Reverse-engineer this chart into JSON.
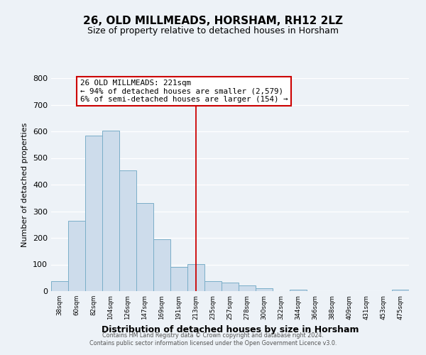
{
  "title": "26, OLD MILLMEADS, HORSHAM, RH12 2LZ",
  "subtitle": "Size of property relative to detached houses in Horsham",
  "xlabel": "Distribution of detached houses by size in Horsham",
  "ylabel": "Number of detached properties",
  "bar_labels": [
    "38sqm",
    "60sqm",
    "82sqm",
    "104sqm",
    "126sqm",
    "147sqm",
    "169sqm",
    "191sqm",
    "213sqm",
    "235sqm",
    "257sqm",
    "278sqm",
    "300sqm",
    "322sqm",
    "344sqm",
    "366sqm",
    "388sqm",
    "409sqm",
    "431sqm",
    "453sqm",
    "475sqm"
  ],
  "bar_heights": [
    38,
    265,
    585,
    603,
    453,
    332,
    196,
    90,
    101,
    38,
    33,
    21,
    12,
    0,
    5,
    0,
    0,
    0,
    0,
    0,
    5
  ],
  "bar_color": "#cddceb",
  "bar_edge_color": "#7aaec8",
  "vline_index": 8,
  "annotation_line1": "26 OLD MILLMEADS: 221sqm",
  "annotation_line2": "← 94% of detached houses are smaller (2,579)",
  "annotation_line3": "6% of semi-detached houses are larger (154) →",
  "annotation_box_color": "#ffffff",
  "annotation_box_edge_color": "#cc0000",
  "vline_color": "#cc0000",
  "ylim": [
    0,
    800
  ],
  "yticks": [
    0,
    100,
    200,
    300,
    400,
    500,
    600,
    700,
    800
  ],
  "background_color": "#edf2f7",
  "grid_color": "#ffffff",
  "title_fontsize": 11,
  "subtitle_fontsize": 9,
  "footer1": "Contains HM Land Registry data © Crown copyright and database right 2024.",
  "footer2": "Contains public sector information licensed under the Open Government Licence v3.0."
}
